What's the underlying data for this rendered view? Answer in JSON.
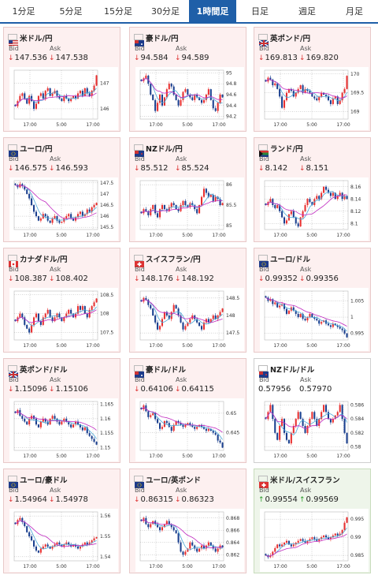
{
  "tabs": [
    "1分足",
    "5分足",
    "15分足",
    "30分足",
    "1時間足",
    "日足",
    "週足",
    "月足"
  ],
  "active_tab": 4,
  "labels": {
    "bid": "Bid",
    "ask": "Ask",
    "down_arrow": "↓",
    "up_arrow": "↑"
  },
  "colors": {
    "bull": "#e83030",
    "bear": "#1a3f8f",
    "ma_fast": "#4aa8d8",
    "ma_slow": "#c02ac0",
    "active_tab": "#1f5fa8"
  },
  "cards": [
    {
      "name": "米ドル/円",
      "flag": "us",
      "bid": "147.536",
      "ask": "147.538",
      "dir": "down",
      "y_ticks": [
        "147",
        "146"
      ],
      "y_tick_vals": [
        147,
        146
      ],
      "ylim": [
        145.6,
        147.5
      ],
      "x_labels": [
        "17:00",
        "5:00",
        "17:00"
      ],
      "closes": [
        146.1,
        146.3,
        146.5,
        146.6,
        146.4,
        146.2,
        146.5,
        146.3,
        146.0,
        146.2,
        146.5,
        146.6,
        146.4,
        146.7,
        146.8,
        146.5,
        146.6,
        146.7,
        146.5,
        146.4,
        146.3,
        146.5,
        146.4,
        146.3,
        146.4,
        146.5,
        146.4,
        146.6,
        146.7,
        146.5,
        146.8,
        146.6,
        146.5,
        146.7,
        146.9,
        147.3
      ]
    },
    {
      "name": "豪ドル/円",
      "flag": "au",
      "bid": "94.584",
      "ask": "94.589",
      "dir": "down",
      "y_ticks": [
        "95",
        "94.8",
        "94.6",
        "94.4",
        "94.2"
      ],
      "y_tick_vals": [
        95,
        94.8,
        94.6,
        94.4,
        94.2
      ],
      "ylim": [
        94.15,
        95.05
      ],
      "x_labels": [
        "17:00",
        "5:00",
        "17:00"
      ],
      "closes": [
        94.85,
        94.9,
        94.95,
        94.8,
        94.6,
        94.5,
        94.3,
        94.45,
        94.6,
        94.4,
        94.55,
        94.7,
        94.8,
        94.75,
        94.6,
        94.5,
        94.4,
        94.5,
        94.65,
        94.7,
        94.6,
        94.55,
        94.5,
        94.6,
        94.55,
        94.5,
        94.45,
        94.5,
        94.6,
        94.7,
        94.5,
        94.35,
        94.3,
        94.45,
        94.6,
        94.55
      ]
    },
    {
      "name": "英ポンド/円",
      "flag": "gb",
      "bid": "169.813",
      "ask": "169.820",
      "dir": "down",
      "y_ticks": [
        "170",
        "169.5",
        "169"
      ],
      "y_tick_vals": [
        170,
        169.5,
        169
      ],
      "ylim": [
        168.8,
        170.1
      ],
      "x_labels": [
        "17:00",
        "5:00",
        "17:00"
      ],
      "closes": [
        169.8,
        169.9,
        169.85,
        169.7,
        169.75,
        169.6,
        169.4,
        169.1,
        169.3,
        169.5,
        169.6,
        169.55,
        169.4,
        169.5,
        169.6,
        169.7,
        169.5,
        169.6,
        169.55,
        169.5,
        169.4,
        169.35,
        169.3,
        169.4,
        169.5,
        169.45,
        169.4,
        169.3,
        169.2,
        169.35,
        169.4,
        169.2,
        169.3,
        169.5,
        169.6,
        169.95
      ]
    },
    {
      "name": "ユーロ/円",
      "flag": "eu",
      "bid": "146.575",
      "ask": "146.593",
      "dir": "down",
      "y_ticks": [
        "147.5",
        "147",
        "146.5",
        "146",
        "145.5"
      ],
      "y_tick_vals": [
        147.5,
        147,
        146.5,
        146,
        145.5
      ],
      "ylim": [
        145.4,
        147.6
      ],
      "x_labels": [
        "17:00",
        "5:00",
        "17:00"
      ],
      "closes": [
        147.4,
        147.3,
        147.45,
        147.35,
        147.2,
        147.0,
        146.8,
        146.5,
        146.2,
        146.0,
        145.8,
        145.9,
        146.1,
        146.0,
        145.8,
        145.7,
        145.9,
        146.0,
        145.8,
        145.7,
        145.75,
        145.9,
        146.0,
        146.1,
        145.9,
        145.8,
        145.95,
        146.1,
        146.2,
        146.0,
        146.1,
        146.3,
        146.2,
        146.4,
        146.5,
        146.6
      ]
    },
    {
      "name": "NZドル/円",
      "flag": "nz",
      "bid": "85.512",
      "ask": "85.524",
      "dir": "down",
      "y_ticks": [
        "86",
        "85.5",
        "85"
      ],
      "y_tick_vals": [
        86,
        85.5,
        85
      ],
      "ylim": [
        84.9,
        86.1
      ],
      "x_labels": [
        "17:00",
        "5:00",
        "17:00"
      ],
      "closes": [
        85.3,
        85.4,
        85.35,
        85.25,
        85.4,
        85.5,
        85.3,
        85.2,
        85.4,
        85.5,
        85.4,
        85.35,
        85.45,
        85.55,
        85.5,
        85.4,
        85.35,
        85.5,
        85.6,
        85.5,
        85.45,
        85.55,
        85.5,
        85.4,
        85.3,
        85.5,
        85.7,
        85.9,
        85.8,
        85.7,
        85.75,
        85.6,
        85.7,
        85.65,
        85.5,
        85.55
      ]
    },
    {
      "name": "ランド/円",
      "flag": "za",
      "bid": "8.142",
      "ask": "8.151",
      "dir": "down",
      "y_ticks": [
        "8.16",
        "8.14",
        "8.12",
        "8.1"
      ],
      "y_tick_vals": [
        8.16,
        8.14,
        8.12,
        8.1
      ],
      "ylim": [
        8.09,
        8.17
      ],
      "x_labels": [
        "17:00",
        "5:00",
        "17:00"
      ],
      "closes": [
        8.13,
        8.135,
        8.14,
        8.13,
        8.125,
        8.13,
        8.12,
        8.11,
        8.1,
        8.105,
        8.115,
        8.12,
        8.11,
        8.1,
        8.095,
        8.11,
        8.12,
        8.13,
        8.14,
        8.135,
        8.13,
        8.14,
        8.145,
        8.14,
        8.15,
        8.16,
        8.155,
        8.15,
        8.145,
        8.15,
        8.14,
        8.145,
        8.15,
        8.14,
        8.145,
        8.14
      ]
    },
    {
      "name": "カナダドル/円",
      "flag": "ca",
      "bid": "108.387",
      "ask": "108.402",
      "dir": "down",
      "y_ticks": [
        "108.5",
        "108",
        "107.5"
      ],
      "y_tick_vals": [
        108.5,
        108,
        107.5
      ],
      "ylim": [
        107.3,
        108.6
      ],
      "x_labels": [
        "17:00",
        "5:00",
        "17:00"
      ],
      "closes": [
        107.8,
        107.9,
        108.0,
        107.9,
        107.7,
        107.6,
        107.5,
        107.7,
        107.9,
        108.0,
        107.8,
        107.7,
        107.9,
        108.0,
        108.1,
        107.9,
        107.8,
        107.9,
        108.0,
        107.9,
        107.8,
        107.9,
        108.0,
        108.1,
        108.0,
        107.9,
        108.0,
        108.2,
        108.1,
        108.2,
        108.0,
        107.9,
        108.1,
        108.2,
        108.3,
        108.4
      ]
    },
    {
      "name": "スイスフラン/円",
      "flag": "ch",
      "bid": "148.176",
      "ask": "148.192",
      "dir": "down",
      "y_ticks": [
        "148.5",
        "148",
        "147.5"
      ],
      "y_tick_vals": [
        148.5,
        148,
        147.5
      ],
      "ylim": [
        147.3,
        148.7
      ],
      "x_labels": [
        "17:00",
        "5:00",
        "17:00"
      ],
      "closes": [
        148.4,
        148.5,
        148.45,
        148.3,
        148.2,
        148.0,
        147.8,
        147.6,
        147.7,
        147.9,
        148.1,
        148.0,
        147.9,
        148.1,
        148.3,
        148.2,
        148.0,
        147.8,
        147.6,
        147.7,
        147.8,
        147.9,
        148.0,
        147.9,
        147.8,
        147.7,
        147.6,
        147.8,
        147.9,
        147.8,
        147.9,
        148.0,
        147.9,
        148.0,
        148.1,
        148.2
      ]
    },
    {
      "name": "ユーロ/ドル",
      "flag": "eu",
      "bid": "0.99352",
      "ask": "0.99356",
      "dir": "down",
      "y_ticks": [
        "1.005",
        "1",
        "0.995"
      ],
      "y_tick_vals": [
        1.005,
        1.0,
        0.995
      ],
      "ylim": [
        0.993,
        1.008
      ],
      "x_labels": [
        "17:00",
        "5:00",
        "17:00"
      ],
      "closes": [
        1.006,
        1.005,
        1.0055,
        1.004,
        1.0045,
        1.003,
        1.0035,
        1.004,
        1.0025,
        1.001,
        1.002,
        1.003,
        1.002,
        1.001,
        1.0,
        1.001,
        0.9995,
        0.999,
        1.0,
        1.001,
        1.0,
        0.9995,
        0.999,
        0.998,
        0.9985,
        0.999,
        0.998,
        0.9975,
        0.997,
        0.998,
        0.9975,
        0.997,
        0.9965,
        0.996,
        0.995,
        0.9938
      ]
    },
    {
      "name": "英ポンド/ドル",
      "flag": "gb",
      "bid": "1.15096",
      "ask": "1.15106",
      "dir": "down",
      "y_ticks": [
        "1.165",
        "1.16",
        "1.155",
        "1.15"
      ],
      "y_tick_vals": [
        1.165,
        1.16,
        1.155,
        1.15
      ],
      "ylim": [
        1.149,
        1.166
      ],
      "x_labels": [
        "17:00",
        "5:00",
        "17:00"
      ],
      "closes": [
        1.162,
        1.163,
        1.161,
        1.16,
        1.159,
        1.158,
        1.16,
        1.161,
        1.16,
        1.158,
        1.157,
        1.159,
        1.16,
        1.159,
        1.158,
        1.16,
        1.161,
        1.16,
        1.159,
        1.158,
        1.159,
        1.16,
        1.159,
        1.158,
        1.157,
        1.158,
        1.159,
        1.158,
        1.157,
        1.156,
        1.157,
        1.155,
        1.154,
        1.153,
        1.152,
        1.151
      ]
    },
    {
      "name": "豪ドル/ドル",
      "flag": "au",
      "bid": "0.64106",
      "ask": "0.64115",
      "dir": "down",
      "y_ticks": [
        "0.65",
        "0.645"
      ],
      "y_tick_vals": [
        0.65,
        0.645
      ],
      "ylim": [
        0.6405,
        0.653
      ],
      "x_labels": [
        "17:00",
        "5:00",
        "17:00"
      ],
      "closes": [
        0.651,
        0.652,
        0.6505,
        0.649,
        0.6495,
        0.65,
        0.6485,
        0.6475,
        0.646,
        0.6465,
        0.648,
        0.6475,
        0.6465,
        0.6455,
        0.647,
        0.648,
        0.6475,
        0.647,
        0.6465,
        0.647,
        0.6475,
        0.647,
        0.6465,
        0.646,
        0.6465,
        0.647,
        0.6465,
        0.646,
        0.6455,
        0.646,
        0.6455,
        0.645,
        0.6445,
        0.643,
        0.6425,
        0.6412
      ]
    },
    {
      "name": "NZドル/ドル",
      "flag": "nz",
      "bid": "0.57956",
      "ask": "0.57970",
      "dir": "none",
      "y_ticks": [
        "0.586",
        "0.584",
        "0.582",
        "0.58"
      ],
      "y_tick_vals": [
        0.586,
        0.584,
        0.582,
        0.58
      ],
      "ylim": [
        0.5795,
        0.5865
      ],
      "x_labels": [
        "17:00",
        "5:00",
        "17:00"
      ],
      "closes": [
        0.584,
        0.585,
        0.586,
        0.584,
        0.582,
        0.581,
        0.583,
        0.584,
        0.582,
        0.581,
        0.5805,
        0.582,
        0.583,
        0.584,
        0.585,
        0.584,
        0.583,
        0.582,
        0.583,
        0.584,
        0.585,
        0.584,
        0.583,
        0.584,
        0.585,
        0.586,
        0.585,
        0.584,
        0.5835,
        0.584,
        0.5845,
        0.585,
        0.586,
        0.584,
        0.582,
        0.5805
      ]
    },
    {
      "name": "ユーロ/豪ドル",
      "flag": "eu",
      "bid": "1.54964",
      "ask": "1.54978",
      "dir": "down",
      "y_ticks": [
        "1.56",
        "1.55",
        "1.54"
      ],
      "y_tick_vals": [
        1.56,
        1.55,
        1.54
      ],
      "ylim": [
        1.538,
        1.562
      ],
      "x_labels": [
        "17:00",
        "5:00",
        "17:00"
      ],
      "closes": [
        1.556,
        1.558,
        1.559,
        1.557,
        1.555,
        1.552,
        1.55,
        1.548,
        1.545,
        1.543,
        1.542,
        1.544,
        1.545,
        1.546,
        1.545,
        1.544,
        1.545,
        1.546,
        1.547,
        1.546,
        1.545,
        1.546,
        1.547,
        1.546,
        1.545,
        1.546,
        1.545,
        1.544,
        1.545,
        1.546,
        1.547,
        1.546,
        1.547,
        1.548,
        1.549,
        1.5496
      ]
    },
    {
      "name": "ユーロ/英ポンド",
      "flag": "eu",
      "bid": "0.86315",
      "ask": "0.86323",
      "dir": "down",
      "y_ticks": [
        "0.868",
        "0.866",
        "0.864",
        "0.862"
      ],
      "y_tick_vals": [
        0.868,
        0.866,
        0.864,
        0.862
      ],
      "ylim": [
        0.861,
        0.869
      ],
      "x_labels": [
        "17:00",
        "5:00",
        "17:00"
      ],
      "closes": [
        0.8675,
        0.868,
        0.867,
        0.8665,
        0.867,
        0.8675,
        0.867,
        0.8665,
        0.866,
        0.8665,
        0.867,
        0.8675,
        0.867,
        0.8665,
        0.866,
        0.8655,
        0.864,
        0.8625,
        0.862,
        0.8625,
        0.863,
        0.864,
        0.8635,
        0.863,
        0.8625,
        0.863,
        0.8635,
        0.863,
        0.8635,
        0.864,
        0.8635,
        0.863,
        0.8625,
        0.863,
        0.8635,
        0.8632
      ]
    },
    {
      "name": "米ドル/スイスフラン",
      "flag": "ch",
      "bid": "0.99554",
      "ask": "0.99569",
      "dir": "up",
      "y_ticks": [
        "0.995",
        "0.99",
        "0.985"
      ],
      "y_tick_vals": [
        0.995,
        0.99,
        0.985
      ],
      "ylim": [
        0.9835,
        0.997
      ],
      "x_labels": [
        "17:00",
        "5:00",
        "17:00"
      ],
      "closes": [
        0.985,
        0.9845,
        0.985,
        0.986,
        0.987,
        0.988,
        0.9875,
        0.988,
        0.9885,
        0.989,
        0.988,
        0.9875,
        0.988,
        0.9885,
        0.989,
        0.9895,
        0.989,
        0.9885,
        0.989,
        0.9895,
        0.99,
        0.9895,
        0.989,
        0.9895,
        0.99,
        0.9905,
        0.99,
        0.9895,
        0.99,
        0.9905,
        0.991,
        0.9905,
        0.991,
        0.992,
        0.994,
        0.9955
      ]
    }
  ]
}
